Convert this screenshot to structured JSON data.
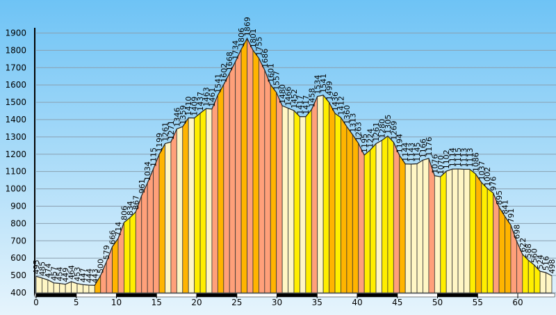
{
  "chart_data": {
    "type": "area",
    "x": [
      0,
      0.73,
      1.46,
      2.19,
      2.92,
      3.65,
      4.38,
      5.11,
      5.84,
      6.57,
      7.3,
      8.03,
      8.76,
      9.49,
      10.22,
      10.95,
      11.68,
      12.41,
      13.14,
      13.87,
      14.6,
      15.33,
      16.06,
      16.79,
      17.52,
      18.25,
      18.98,
      19.71,
      20.44,
      21.17,
      21.9,
      22.63,
      23.36,
      24.09,
      24.82,
      25.55,
      26.28,
      27.01,
      27.74,
      28.47,
      29.2,
      29.93,
      30.66,
      31.39,
      32.12,
      32.85,
      33.58,
      34.31,
      35.04,
      35.77,
      36.5,
      37.23,
      37.96,
      38.69,
      39.42,
      40.15,
      40.88,
      41.61,
      42.34,
      43.07,
      43.8,
      44.53,
      45.26,
      45.99,
      46.72,
      47.45,
      48.18,
      48.91,
      49.64,
      50.37,
      51.1,
      51.83,
      52.56,
      53.29,
      54.02,
      54.75,
      55.48,
      56.21,
      56.94,
      57.67,
      58.4,
      59.13,
      59.86,
      60.59,
      61.32,
      62.05,
      62.78,
      63.51,
      64.24
    ],
    "values": [
      495,
      485,
      474,
      457,
      454,
      449,
      464,
      453,
      447,
      444,
      443,
      500,
      579,
      666,
      714,
      806,
      834,
      867,
      961,
      1034,
      1115,
      1199,
      1261,
      1271,
      1346,
      1359,
      1410,
      1409,
      1437,
      1463,
      1461,
      1541,
      1602,
      1668,
      1734,
      1806,
      1869,
      1801,
      1755,
      1686,
      1601,
      1557,
      1480,
      1466,
      1452,
      1417,
      1417,
      1458,
      1534,
      1541,
      1499,
      1436,
      1412,
      1360,
      1313,
      1263,
      1195,
      1224,
      1261,
      1280,
      1305,
      1269,
      1194,
      1144,
      1143,
      1145,
      1166,
      1176,
      1076,
      1070,
      1102,
      1114,
      1115,
      1113,
      1113,
      1086,
      1037,
      1002,
      976,
      895,
      841,
      791,
      698,
      622,
      588,
      560,
      524,
      516,
      498
    ],
    "palette": [
      "#fff6c4",
      "#ffee00",
      "#ffb400",
      "#ffa07a"
    ],
    "xlim": [
      0,
      64.6
    ],
    "ylim": [
      400,
      1930
    ],
    "xticks": [
      0,
      5,
      10,
      15,
      20,
      25,
      30,
      35,
      40,
      45,
      50,
      55,
      60
    ],
    "yticks": [
      400,
      500,
      600,
      700,
      800,
      900,
      1000,
      1100,
      1200,
      1300,
      1400,
      1500,
      1600,
      1700,
      1800,
      1900
    ],
    "grid": true
  }
}
